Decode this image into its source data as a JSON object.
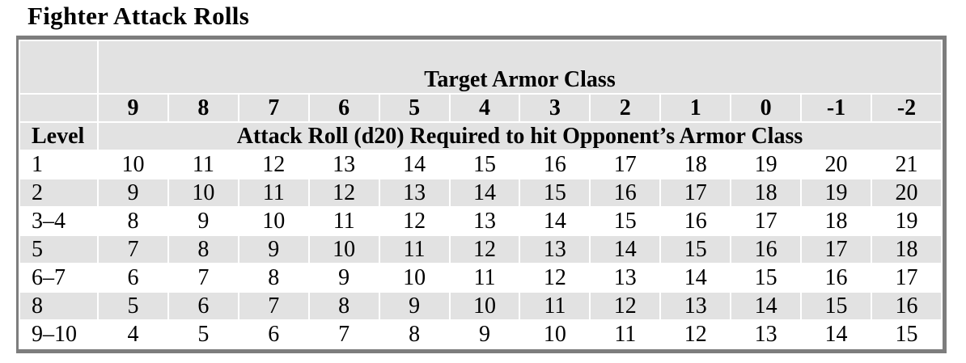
{
  "page_title": "Fighter Attack Rolls",
  "colors": {
    "page_bg": "#ffffff",
    "text": "#000000",
    "border": "#7d7d7d",
    "header_bg": "#e2e2e2",
    "stripe_bg": "#e2e2e2"
  },
  "table": {
    "header": {
      "group_title": "Target Armor Class",
      "ac_columns": [
        "9",
        "8",
        "7",
        "6",
        "5",
        "4",
        "3",
        "2",
        "1",
        "0",
        "-1",
        "-2"
      ],
      "level_label": "Level",
      "subheader": "Attack Roll (d20) Required to hit Opponent’s Armor Class"
    },
    "rows": [
      {
        "level": "1",
        "values": [
          10,
          11,
          12,
          13,
          14,
          15,
          16,
          17,
          18,
          19,
          20,
          21
        ]
      },
      {
        "level": "2",
        "values": [
          9,
          10,
          11,
          12,
          13,
          14,
          15,
          16,
          17,
          18,
          19,
          20
        ]
      },
      {
        "level": "3–4",
        "values": [
          8,
          9,
          10,
          11,
          12,
          13,
          14,
          15,
          16,
          17,
          18,
          19
        ]
      },
      {
        "level": "5",
        "values": [
          7,
          8,
          9,
          10,
          11,
          12,
          13,
          14,
          15,
          16,
          17,
          18
        ]
      },
      {
        "level": "6–7",
        "values": [
          6,
          7,
          8,
          9,
          10,
          11,
          12,
          13,
          14,
          15,
          16,
          17
        ]
      },
      {
        "level": "8",
        "values": [
          5,
          6,
          7,
          8,
          9,
          10,
          11,
          12,
          13,
          14,
          15,
          16
        ]
      },
      {
        "level": "9–10",
        "values": [
          4,
          5,
          6,
          7,
          8,
          9,
          10,
          11,
          12,
          13,
          14,
          15
        ]
      }
    ]
  }
}
